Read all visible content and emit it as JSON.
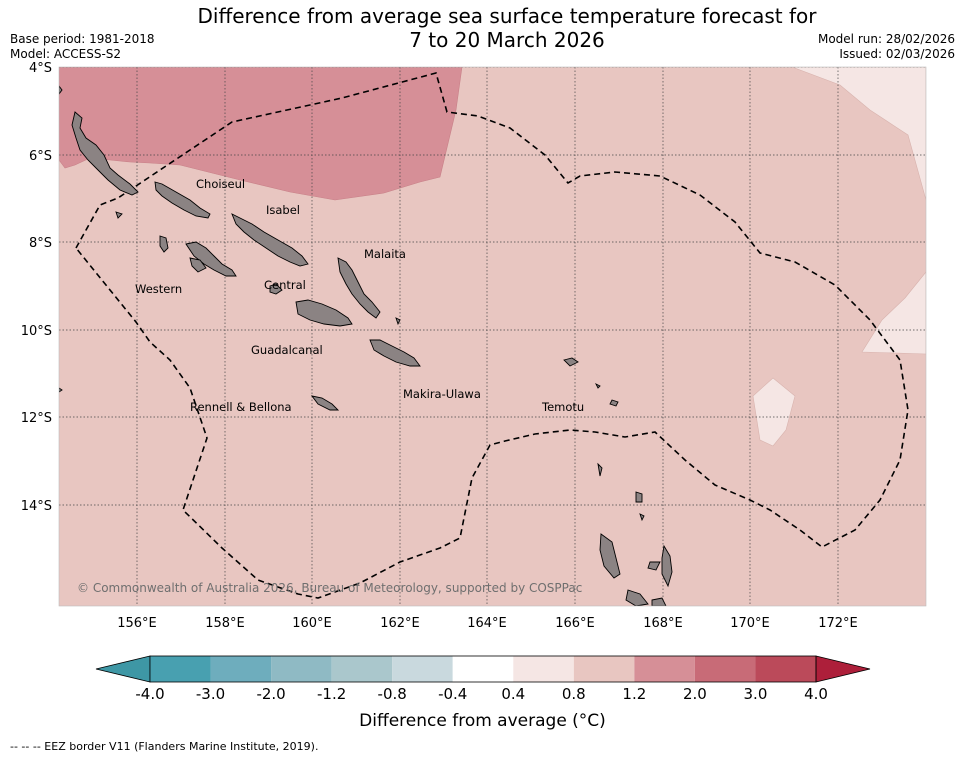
{
  "title": {
    "line1": "Difference from average sea surface temperature forecast for",
    "line2": "7 to 20 March 2026"
  },
  "meta": {
    "base_period": "Base period: 1981-2018",
    "model": "Model: ACCESS-S2",
    "model_run": "Model run: 28/02/2026",
    "issued": "Issued: 02/03/2026"
  },
  "lat_labels": [
    "4°S",
    "6°S",
    "8°S",
    "10°S",
    "12°S",
    "14°S"
  ],
  "lon_labels": [
    "156°E",
    "158°E",
    "160°E",
    "162°E",
    "164°E",
    "166°E",
    "168°E",
    "170°E",
    "172°E"
  ],
  "places": {
    "choiseul": "Choiseul",
    "isabel": "Isabel",
    "malaita": "Malaita",
    "western": "Western",
    "central": "Central",
    "guadalcanal": "Guadalcanal",
    "makira": "Makira-Ulawa",
    "temotu": "Temotu",
    "rennell": "Rennell & Bellona"
  },
  "copyright": "© Commonwealth of Australia 2026, Bureau of Meteorology, supported by COSPPac",
  "colorbar": {
    "ticks": [
      "-4.0",
      "-3.0",
      "-2.0",
      "-1.2",
      "-0.8",
      "-0.4",
      "0.4",
      "0.8",
      "1.2",
      "2.0",
      "3.0",
      "4.0"
    ],
    "colors": [
      "#3e97a5",
      "#48a0b0",
      "#6eadbd",
      "#8fbac4",
      "#aac7cc",
      "#c9d9de",
      "#ffffff",
      "#f5e6e4",
      "#e8c6c1",
      "#d68f97",
      "#c86b77",
      "#bb4a5a",
      "#ad1f3a"
    ],
    "label": "Difference from average ($^\\circ$C)",
    "label_display": "Difference from average (°C)"
  },
  "footer": "--  --  -- EEZ border V11 (Flanders Marine Institute, 2019)."
}
